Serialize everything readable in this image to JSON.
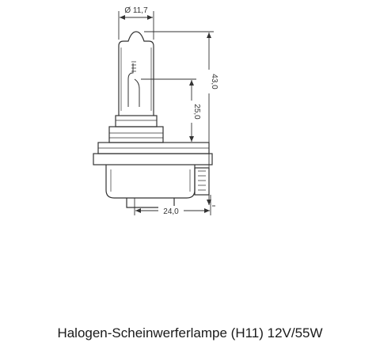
{
  "dimensions": {
    "diameter": "Ø 11,7",
    "total_height": "43,0",
    "light_center_height": "25,0",
    "base_width": "24,0"
  },
  "caption": "Halogen-Scheinwerferlampe (H11) 12V/55W",
  "colors": {
    "line": "#333333",
    "fill": "#ffffff"
  }
}
